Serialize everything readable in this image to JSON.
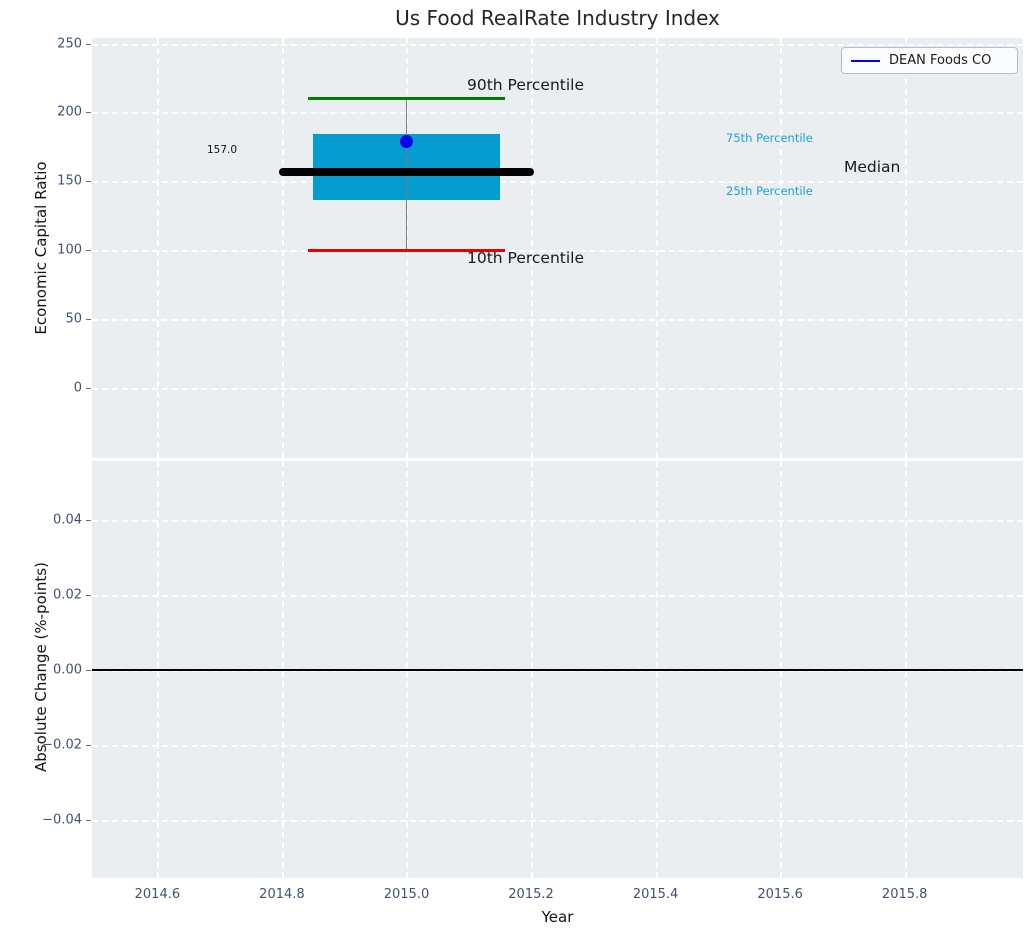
{
  "title": "Us Food RealRate Industry Index",
  "legend": {
    "label": "DEAN Foods CO"
  },
  "top_chart": {
    "ylabel": "Economic Capital Ratio",
    "annotations": {
      "p90": "90th Percentile",
      "p75": "75th Percentile",
      "median": "Median",
      "p25": "25th Percentile",
      "p10": "10th Percentile",
      "median_value": "157.0"
    }
  },
  "bottom_chart": {
    "ylabel": "Absolute Change (%-points)"
  },
  "x_axis": {
    "label": "Year"
  },
  "colors": {
    "panel_bg": "#eaeef1",
    "grid": "#ffffff",
    "tick_text": "#42526e",
    "box_fill": "#049bce",
    "median_line": "#000000",
    "whisker": "#7a7a7a",
    "cap_top_green": "#007d00",
    "cap_bottom_red": "#e80000",
    "company_dot": "#0000e6",
    "legend_line_blue": "#0000ee",
    "percentile_text": "#21a0d2",
    "zero_line": "#000000"
  },
  "chart_data": [
    {
      "type": "box",
      "title": "Us Food RealRate Industry Index",
      "xlabel": "Year",
      "ylabel": "Economic Capital Ratio",
      "x_center": 2015.0,
      "percentiles": {
        "p10": 100,
        "p25": 136,
        "median": 157,
        "p75": 184,
        "p90": 210
      },
      "median_label": "157.0",
      "series": [
        {
          "name": "DEAN Foods CO",
          "x": 2015.0,
          "y": 179,
          "marker": "circle",
          "color": "#0000e6"
        }
      ],
      "ylim": [
        -51,
        254
      ],
      "yticks": [
        250,
        200,
        150,
        100,
        50,
        0
      ],
      "xlim": [
        2014.495,
        2015.99
      ],
      "xticks": [
        2014.6,
        2014.8,
        2015.0,
        2015.2,
        2015.4,
        2015.6,
        2015.8
      ],
      "grid": true,
      "legend_position": "upper right",
      "box_width": 0.3,
      "median_line_width": 0.41,
      "cap_width": 0.035,
      "annotation_labels": [
        "90th Percentile",
        "75th Percentile",
        "Median",
        "25th Percentile",
        "10th Percentile"
      ]
    },
    {
      "type": "line",
      "xlabel": "Year",
      "ylabel": "Absolute Change (%-points)",
      "ylim": [
        -0.0556,
        0.0557
      ],
      "yticks": [
        0.04,
        0.02,
        0.0,
        -0.02,
        -0.04
      ],
      "xlim": [
        2014.495,
        2015.99
      ],
      "xticks": [
        2014.6,
        2014.8,
        2015.0,
        2015.2,
        2015.4,
        2015.6,
        2015.8
      ],
      "zero_line": 0.0,
      "grid": true,
      "series": []
    }
  ]
}
